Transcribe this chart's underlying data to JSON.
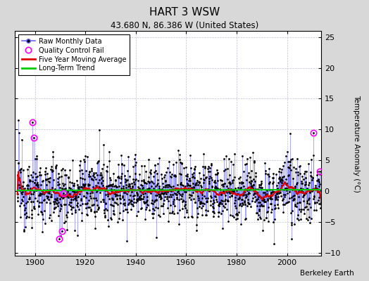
{
  "title": "HART 3 WSW",
  "subtitle": "43.680 N, 86.386 W (United States)",
  "ylabel": "Temperature Anomaly (°C)",
  "credit": "Berkeley Earth",
  "year_start": 1893,
  "year_end": 2013,
  "ylim": [
    -10.5,
    26
  ],
  "yticks": [
    -10,
    -5,
    0,
    5,
    10,
    15,
    20,
    25
  ],
  "bg_color": "#d8d8d8",
  "plot_bg_color": "#ffffff",
  "raw_line_color": "#6666ff",
  "raw_dot_color": "#000000",
  "ma_color": "#dd0000",
  "trend_color": "#00cc00",
  "qc_color": "#ff00ff",
  "seed": 12345,
  "n_months": 1452,
  "noise_scale": 2.5,
  "moving_avg_window": 60,
  "xticks": [
    1900,
    1920,
    1940,
    1960,
    1980,
    2000
  ]
}
